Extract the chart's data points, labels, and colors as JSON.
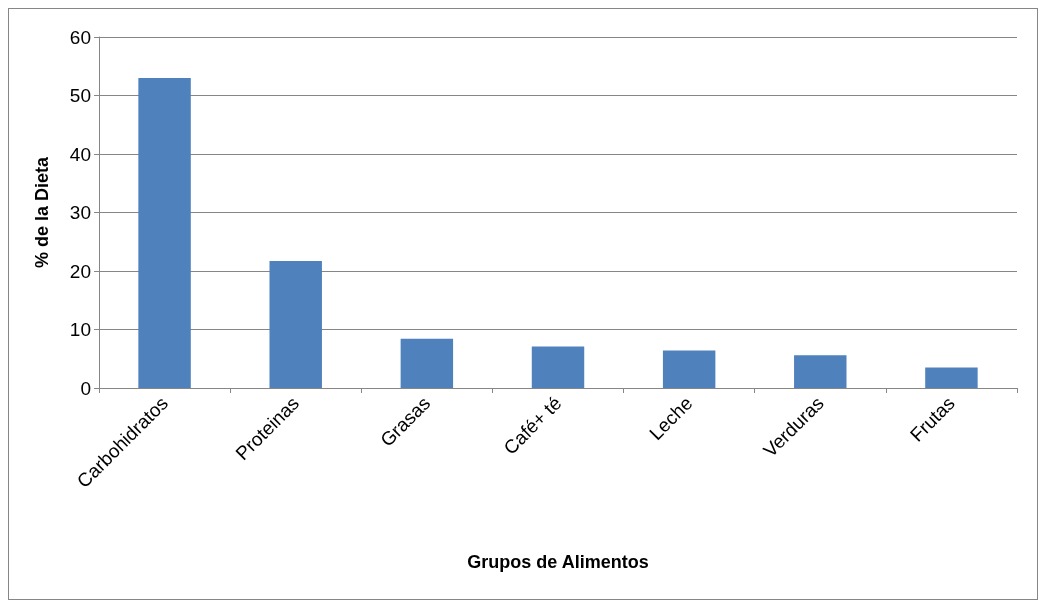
{
  "chart_data": {
    "type": "bar",
    "xlabel": "Grupos de Alimentos",
    "ylabel": "% de la Dieta",
    "categories": [
      "Carbohidratos",
      "Proteinas",
      "Grasas",
      "Café+ té",
      "Leche",
      "Verduras",
      "Frutas"
    ],
    "values": [
      53,
      21.7,
      8.4,
      7.1,
      6.4,
      5.6,
      3.5
    ],
    "color": "#4f81bd",
    "ylim": [
      0,
      60
    ],
    "yticks": [
      0,
      10,
      20,
      30,
      40,
      50,
      60
    ],
    "grid": "y"
  }
}
